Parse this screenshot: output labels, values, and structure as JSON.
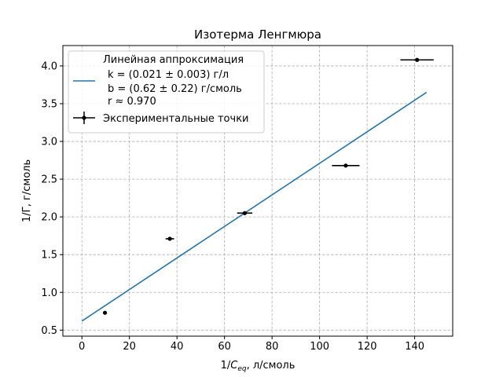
{
  "chart_data": {
    "type": "scatter",
    "title": "Изотерма Ленгмюра",
    "xlabel_prefix": "1/",
    "xlabel_var": "C",
    "xlabel_sub": "eq",
    "xlabel_suffix": ", л/смоль",
    "ylabel": "1/Γ, г/смоль",
    "xlim": [
      -8,
      156
    ],
    "ylim": [
      0.42,
      4.27
    ],
    "xticks": [
      0,
      20,
      40,
      60,
      80,
      100,
      120,
      140
    ],
    "yticks": [
      0.5,
      1.0,
      1.5,
      2.0,
      2.5,
      3.0,
      3.5,
      4.0
    ],
    "grid": true,
    "legend_position": "top-left",
    "series": [
      {
        "name": "Линейная аппроксимация",
        "kind": "line",
        "color": "#1f77b4",
        "x": [
          0,
          145
        ],
        "y": [
          0.62,
          3.65
        ]
      },
      {
        "name": "Экспериментальные точки",
        "kind": "errorbar",
        "color": "#000000",
        "points": [
          {
            "x": 9.7,
            "y": 0.73,
            "xerr": 0.3
          },
          {
            "x": 37.0,
            "y": 1.71,
            "xerr": 1.8
          },
          {
            "x": 68.5,
            "y": 2.05,
            "xerr": 3.2
          },
          {
            "x": 111.0,
            "y": 2.68,
            "xerr": 5.8
          },
          {
            "x": 141.0,
            "y": 4.08,
            "xerr": 7.0
          }
        ]
      }
    ],
    "legend_lines": [
      "k = (0.021 ± 0.003) г/л",
      "b = (0.62 ± 0.22) г/смоль",
      "r ≈ 0.970"
    ]
  }
}
